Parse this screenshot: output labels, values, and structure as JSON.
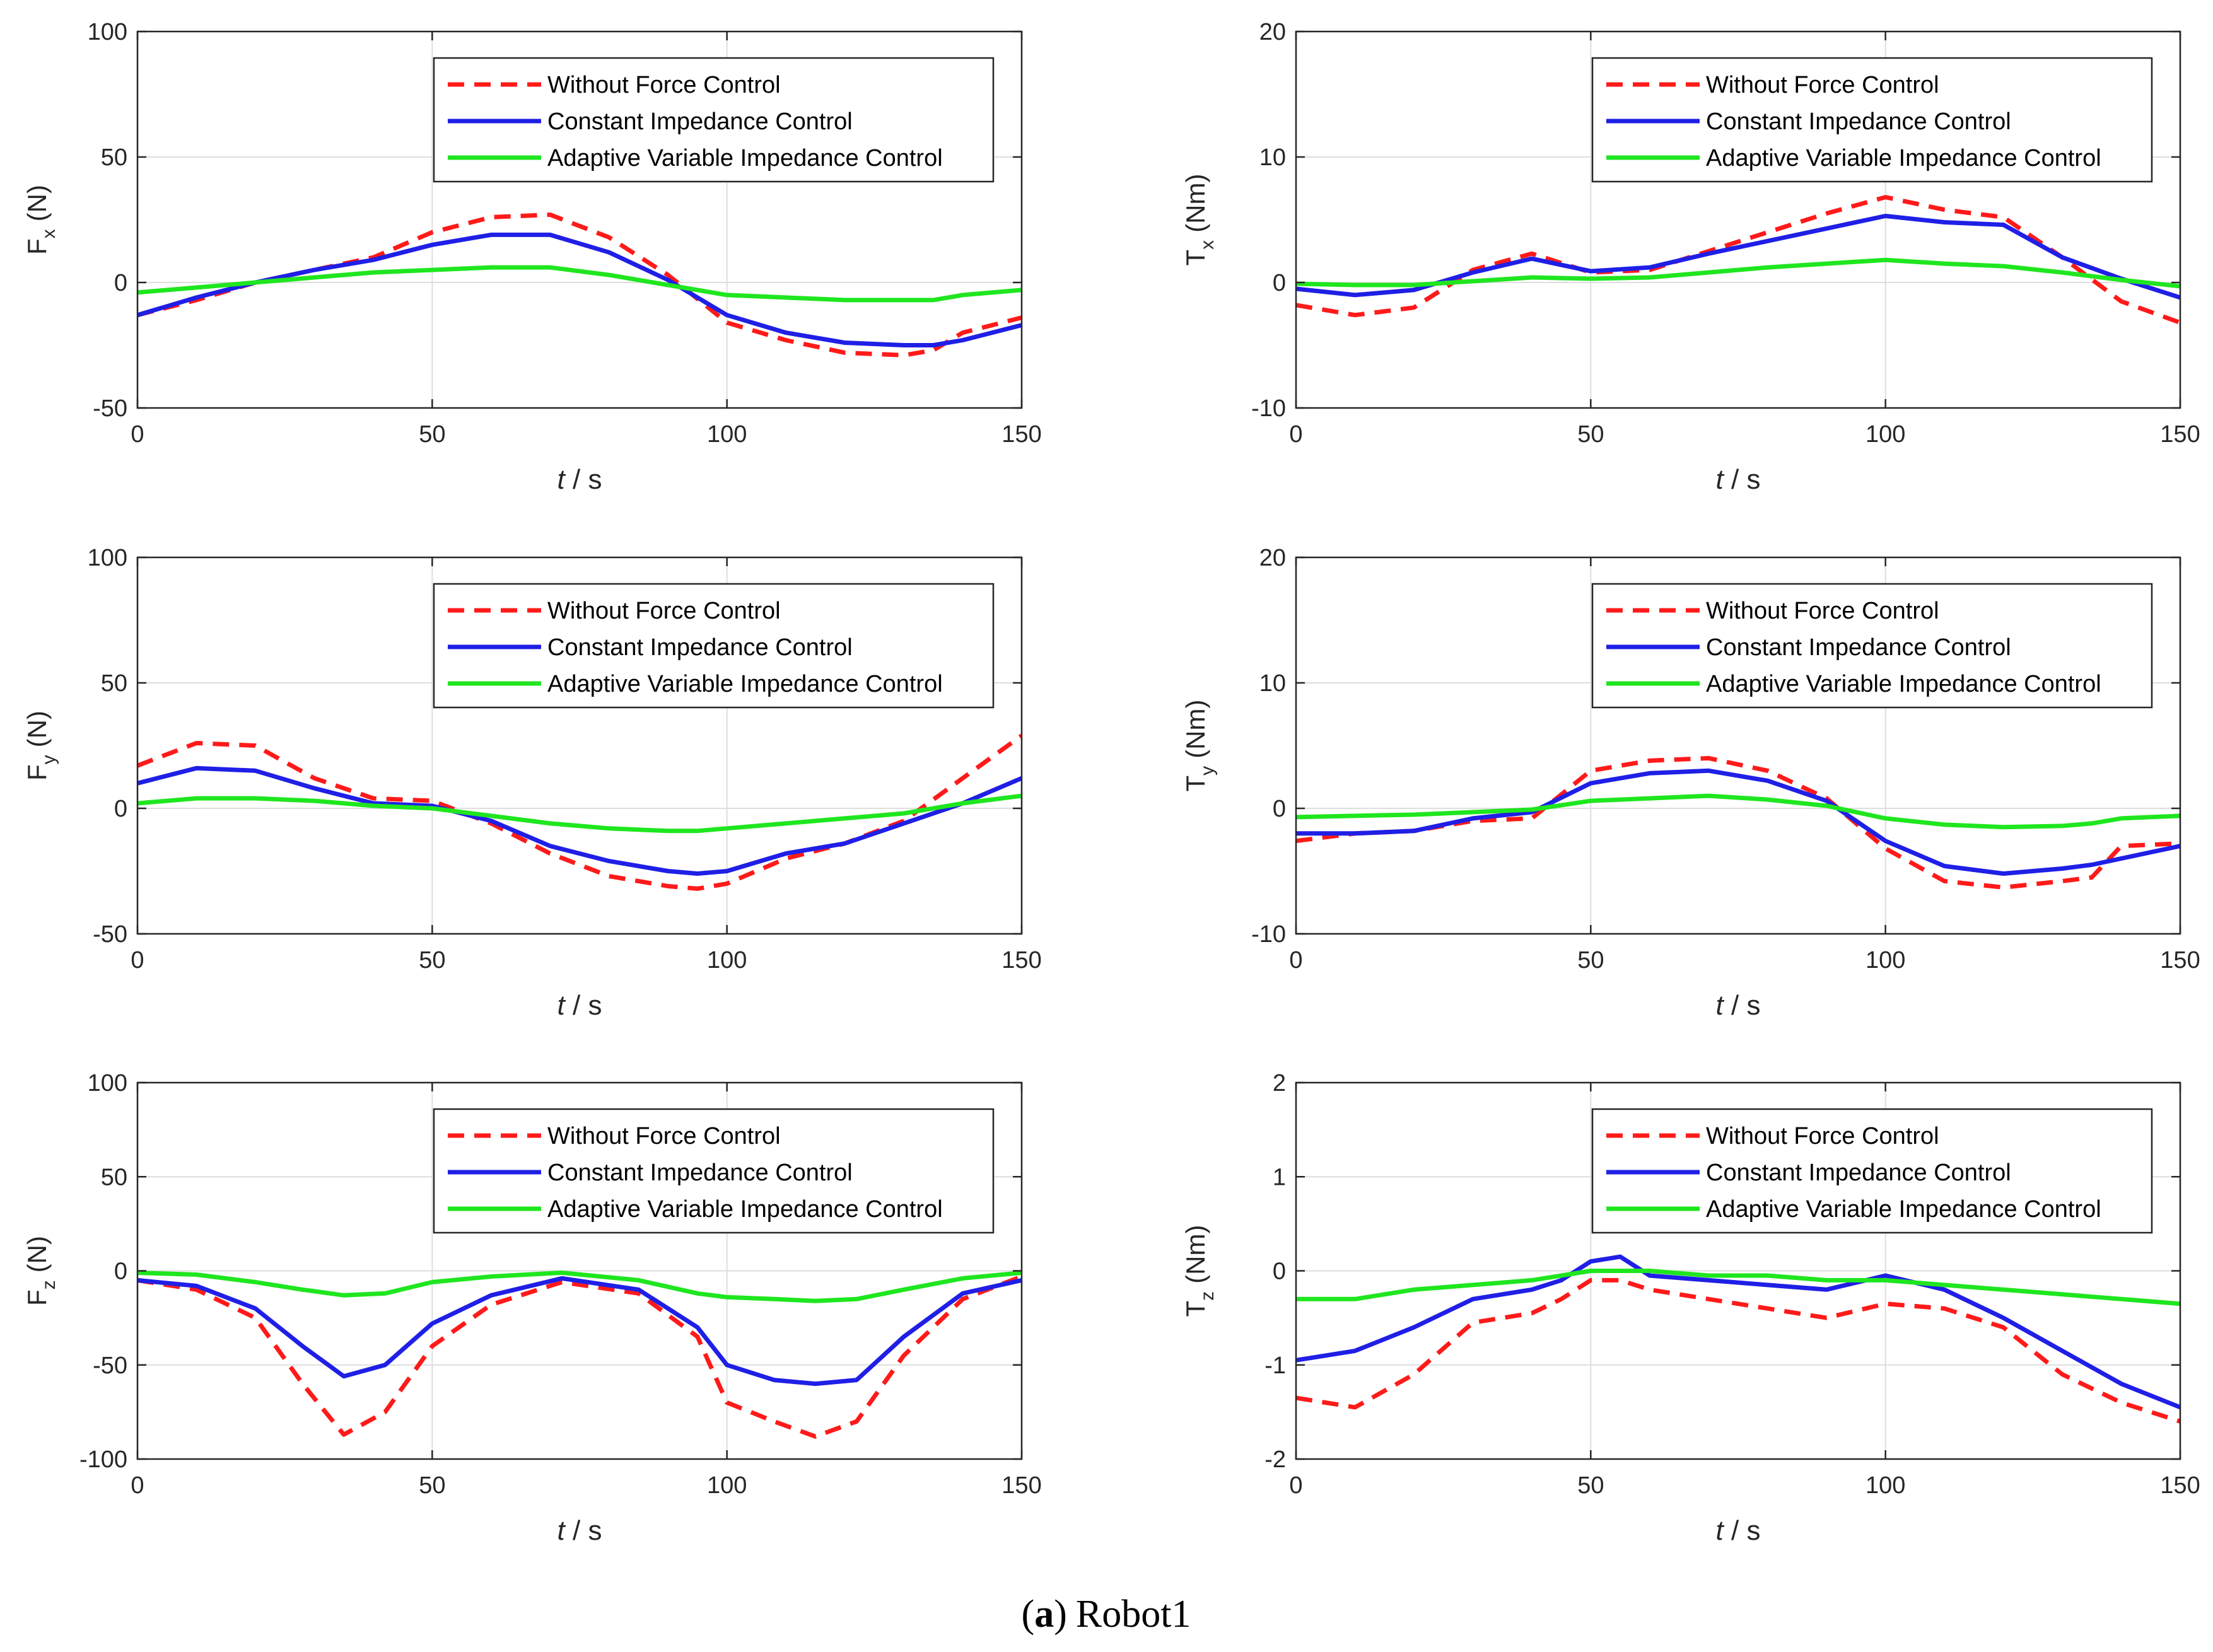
{
  "caption": {
    "prefix": "(",
    "letter": "a",
    "suffix": ")",
    "text": "Robot1"
  },
  "colors": {
    "without": "#ff1a1a",
    "constant": "#1f1fe6",
    "adaptive": "#1fe61f",
    "axis": "#262626",
    "grid": "#dedede"
  },
  "chart_data": [
    {
      "type": "line",
      "id": "fx",
      "ylabel": {
        "main": "F",
        "sub": "x",
        "unit": "(N)"
      },
      "xlabel": {
        "var": "t",
        "sep": " / ",
        "unit": "s"
      },
      "xlim": [
        0,
        150
      ],
      "ylim": [
        -50,
        100
      ],
      "xticks": [
        0,
        50,
        100,
        150
      ],
      "yticks": [
        -50,
        0,
        50,
        100
      ],
      "grid": true,
      "legend_position": "top-right",
      "x": [
        0,
        10,
        20,
        30,
        40,
        50,
        60,
        70,
        80,
        90,
        100,
        110,
        120,
        130,
        135,
        140,
        150
      ],
      "series": [
        {
          "name": "Without Force Control",
          "style": "dashed",
          "values": [
            -13,
            -7,
            0,
            5,
            10,
            20,
            26,
            27,
            18,
            3,
            -16,
            -23,
            -28,
            -29,
            -27,
            -20,
            -14
          ]
        },
        {
          "name": "Constant Impedance Control",
          "style": "solid",
          "values": [
            -13,
            -6,
            0,
            5,
            9,
            15,
            19,
            19,
            12,
            1,
            -13,
            -20,
            -24,
            -25,
            -25,
            -23,
            -17
          ]
        },
        {
          "name": "Adaptive Variable Impedance Control",
          "style": "solid",
          "values": [
            -4,
            -2,
            0,
            2,
            4,
            5,
            6,
            6,
            3,
            -1,
            -5,
            -6,
            -7,
            -7,
            -7,
            -5,
            -3
          ]
        }
      ]
    },
    {
      "type": "line",
      "id": "tx",
      "ylabel": {
        "main": "T",
        "sub": "x",
        "unit": "(Nm)"
      },
      "xlabel": {
        "var": "t",
        "sep": " / ",
        "unit": "s"
      },
      "xlim": [
        0,
        150
      ],
      "ylim": [
        -10,
        20
      ],
      "xticks": [
        0,
        50,
        100,
        150
      ],
      "yticks": [
        -10,
        0,
        10,
        20
      ],
      "grid": true,
      "legend_position": "top-right",
      "x": [
        0,
        10,
        20,
        30,
        40,
        50,
        60,
        70,
        80,
        90,
        100,
        110,
        120,
        130,
        140,
        150
      ],
      "series": [
        {
          "name": "Without Force Control",
          "style": "dashed",
          "values": [
            -1.8,
            -2.6,
            -2.0,
            1.0,
            2.3,
            0.8,
            1.0,
            2.5,
            4.0,
            5.5,
            6.8,
            5.8,
            5.2,
            2.0,
            -1.5,
            -3.2
          ]
        },
        {
          "name": "Constant Impedance Control",
          "style": "solid",
          "values": [
            -0.5,
            -1.0,
            -0.6,
            0.8,
            1.9,
            0.9,
            1.2,
            2.3,
            3.3,
            4.3,
            5.3,
            4.8,
            4.6,
            2.0,
            0.3,
            -1.2
          ]
        },
        {
          "name": "Adaptive Variable Impedance Control",
          "style": "solid",
          "values": [
            -0.1,
            -0.2,
            -0.2,
            0.1,
            0.4,
            0.3,
            0.4,
            0.8,
            1.2,
            1.5,
            1.8,
            1.5,
            1.3,
            0.8,
            0.2,
            -0.3
          ]
        }
      ]
    },
    {
      "type": "line",
      "id": "fy",
      "ylabel": {
        "main": "F",
        "sub": "y",
        "unit": "(N)"
      },
      "xlabel": {
        "var": "t",
        "sep": " / ",
        "unit": "s"
      },
      "xlim": [
        0,
        150
      ],
      "ylim": [
        -50,
        100
      ],
      "xticks": [
        0,
        50,
        100,
        150
      ],
      "yticks": [
        -50,
        0,
        50,
        100
      ],
      "grid": true,
      "legend_position": "top-right",
      "x": [
        0,
        10,
        20,
        30,
        40,
        50,
        60,
        70,
        80,
        90,
        95,
        100,
        110,
        120,
        130,
        140,
        150
      ],
      "series": [
        {
          "name": "Without Force Control",
          "style": "dashed",
          "values": [
            17,
            26,
            25,
            12,
            4,
            3,
            -6,
            -18,
            -27,
            -31,
            -32,
            -30,
            -20,
            -14,
            -5,
            12,
            29
          ]
        },
        {
          "name": "Constant Impedance Control",
          "style": "solid",
          "values": [
            10,
            16,
            15,
            8,
            2,
            1,
            -5,
            -15,
            -21,
            -25,
            -26,
            -25,
            -18,
            -14,
            -6,
            2,
            12
          ]
        },
        {
          "name": "Adaptive Variable Impedance Control",
          "style": "solid",
          "values": [
            2,
            4,
            4,
            3,
            1,
            0,
            -3,
            -6,
            -8,
            -9,
            -9,
            -8,
            -6,
            -4,
            -2,
            2,
            5
          ]
        }
      ]
    },
    {
      "type": "line",
      "id": "ty",
      "ylabel": {
        "main": "T",
        "sub": "y",
        "unit": "(Nm)"
      },
      "xlabel": {
        "var": "t",
        "sep": " / ",
        "unit": "s"
      },
      "xlim": [
        0,
        150
      ],
      "ylim": [
        -10,
        20
      ],
      "xticks": [
        0,
        50,
        100,
        150
      ],
      "yticks": [
        -10,
        0,
        10,
        20
      ],
      "grid": true,
      "legend_position": "top-right",
      "x": [
        0,
        10,
        20,
        30,
        40,
        50,
        60,
        70,
        80,
        90,
        100,
        110,
        120,
        130,
        135,
        140,
        150
      ],
      "series": [
        {
          "name": "Without Force Control",
          "style": "dashed",
          "values": [
            -2.6,
            -2.0,
            -1.8,
            -1.0,
            -0.8,
            3.0,
            3.8,
            4.0,
            3.0,
            0.8,
            -3.2,
            -5.8,
            -6.3,
            -5.8,
            -5.5,
            -3.0,
            -2.8
          ]
        },
        {
          "name": "Constant Impedance Control",
          "style": "solid",
          "values": [
            -2.0,
            -2.0,
            -1.8,
            -0.8,
            -0.3,
            2.0,
            2.8,
            3.0,
            2.2,
            0.6,
            -2.6,
            -4.6,
            -5.2,
            -4.8,
            -4.5,
            -4.0,
            -3.0
          ]
        },
        {
          "name": "Adaptive Variable Impedance Control",
          "style": "solid",
          "values": [
            -0.7,
            -0.6,
            -0.5,
            -0.3,
            -0.1,
            0.6,
            0.8,
            1.0,
            0.7,
            0.2,
            -0.8,
            -1.3,
            -1.5,
            -1.4,
            -1.2,
            -0.8,
            -0.6
          ]
        }
      ]
    },
    {
      "type": "line",
      "id": "fz",
      "ylabel": {
        "main": "F",
        "sub": "z",
        "unit": "(N)"
      },
      "xlabel": {
        "var": "t",
        "sep": " / ",
        "unit": "s"
      },
      "xlim": [
        0,
        150
      ],
      "ylim": [
        -100,
        100
      ],
      "xticks": [
        0,
        50,
        100,
        150
      ],
      "yticks": [
        -100,
        -50,
        0,
        50,
        100
      ],
      "grid": true,
      "legend_position": "top-right",
      "x": [
        0,
        10,
        20,
        28,
        35,
        42,
        50,
        60,
        72,
        85,
        95,
        100,
        108,
        115,
        122,
        130,
        140,
        150
      ],
      "series": [
        {
          "name": "Without Force Control",
          "style": "dashed",
          "values": [
            -5,
            -10,
            -25,
            -60,
            -87,
            -75,
            -40,
            -18,
            -6,
            -12,
            -35,
            -70,
            -80,
            -88,
            -80,
            -45,
            -15,
            -3
          ]
        },
        {
          "name": "Constant Impedance Control",
          "style": "solid",
          "values": [
            -5,
            -8,
            -20,
            -40,
            -56,
            -50,
            -28,
            -13,
            -4,
            -10,
            -30,
            -50,
            -58,
            -60,
            -58,
            -35,
            -12,
            -5
          ]
        },
        {
          "name": "Adaptive Variable Impedance Control",
          "style": "solid",
          "values": [
            -1,
            -2,
            -6,
            -10,
            -13,
            -12,
            -6,
            -3,
            -1,
            -5,
            -12,
            -14,
            -15,
            -16,
            -15,
            -10,
            -4,
            -1
          ]
        }
      ]
    },
    {
      "type": "line",
      "id": "tz",
      "ylabel": {
        "main": "T",
        "sub": "z",
        "unit": "(Nm)"
      },
      "xlabel": {
        "var": "t",
        "sep": " / ",
        "unit": "s"
      },
      "xlim": [
        0,
        150
      ],
      "ylim": [
        -2,
        2
      ],
      "xticks": [
        0,
        50,
        100,
        150
      ],
      "yticks": [
        -2,
        -1,
        0,
        1,
        2
      ],
      "grid": true,
      "legend_position": "top-right",
      "x": [
        0,
        10,
        20,
        30,
        40,
        45,
        50,
        55,
        60,
        70,
        80,
        90,
        100,
        110,
        120,
        130,
        140,
        150
      ],
      "series": [
        {
          "name": "Without Force Control",
          "style": "dashed",
          "values": [
            -1.35,
            -1.45,
            -1.1,
            -0.55,
            -0.45,
            -0.3,
            -0.1,
            -0.1,
            -0.2,
            -0.3,
            -0.4,
            -0.5,
            -0.35,
            -0.4,
            -0.6,
            -1.1,
            -1.4,
            -1.6
          ]
        },
        {
          "name": "Constant Impedance Control",
          "style": "solid",
          "values": [
            -0.95,
            -0.85,
            -0.6,
            -0.3,
            -0.2,
            -0.1,
            0.1,
            0.15,
            -0.05,
            -0.1,
            -0.15,
            -0.2,
            -0.05,
            -0.2,
            -0.5,
            -0.85,
            -1.2,
            -1.45
          ]
        },
        {
          "name": "Adaptive Variable Impedance Control",
          "style": "solid",
          "values": [
            -0.3,
            -0.3,
            -0.2,
            -0.15,
            -0.1,
            -0.05,
            0.0,
            0.0,
            0.0,
            -0.05,
            -0.05,
            -0.1,
            -0.1,
            -0.15,
            -0.2,
            -0.25,
            -0.3,
            -0.35
          ]
        }
      ]
    }
  ]
}
